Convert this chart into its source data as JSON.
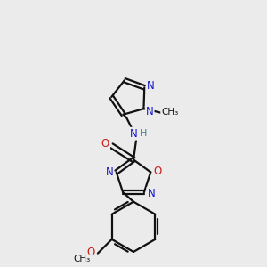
{
  "bg_color": "#ebebeb",
  "bond_color": "#111111",
  "bond_width": 1.6,
  "atom_colors": {
    "N": "#1a1acc",
    "O": "#cc1a1a",
    "H": "#3a8888",
    "C": "#111111"
  },
  "font_size_atom": 8.5,
  "font_size_small": 7.5
}
